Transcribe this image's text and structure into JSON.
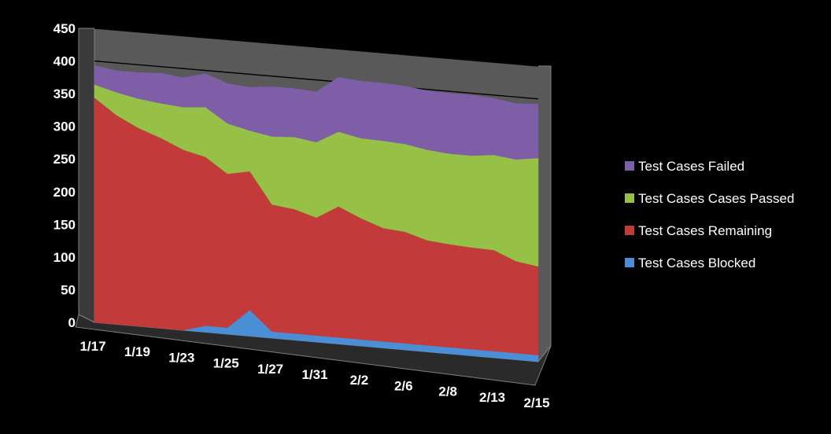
{
  "chart_data": {
    "type": "area",
    "stacked": true,
    "three_d": true,
    "title": "",
    "xlabel": "",
    "ylabel": "",
    "ylim": [
      0,
      450
    ],
    "y_ticks": [
      0,
      50,
      100,
      150,
      200,
      250,
      300,
      350,
      400,
      450
    ],
    "grid": true,
    "legend_position": "right",
    "x": [
      "1/17",
      "1/18",
      "1/19",
      "1/20",
      "1/23",
      "1/24",
      "1/25",
      "1/26",
      "1/27",
      "1/30",
      "1/31",
      "2/1",
      "2/2",
      "2/3",
      "2/6",
      "2/7",
      "2/8",
      "2/9",
      "2/13",
      "2/14",
      "2/15"
    ],
    "x_tick_labels": [
      "1/17",
      "1/19",
      "1/23",
      "1/25",
      "1/27",
      "1/31",
      "2/2",
      "2/6",
      "2/8",
      "2/13",
      "2/15"
    ],
    "series": [
      {
        "name": "Test Cases Blocked",
        "color": "#4a8fd6",
        "values": [
          0,
          0,
          0,
          0,
          0,
          10,
          10,
          40,
          10,
          10,
          10,
          10,
          10,
          10,
          10,
          10,
          10,
          10,
          10,
          10,
          10
        ]
      },
      {
        "name": "Test Cases Remaining",
        "color": "#c23a3a",
        "values": [
          344,
          320,
          303,
          291,
          276,
          258,
          235,
          212,
          194,
          190,
          180,
          200,
          185,
          173,
          170,
          160,
          157,
          155,
          154,
          140,
          135
        ]
      },
      {
        "name": "Test Cases Cases Passed",
        "color": "#96c046",
        "values": [
          20,
          35,
          45,
          53,
          65,
          76,
          77,
          62,
          104,
          110,
          115,
          114,
          122,
          133,
          134,
          138,
          138,
          140,
          145,
          155,
          165
        ]
      },
      {
        "name": "Test Cases Failed",
        "color": "#7d5ea7",
        "values": [
          29,
          33,
          40,
          46,
          45,
          51,
          61,
          66,
          76,
          74,
          77,
          83,
          87,
          88,
          88,
          90,
          92,
          92,
          86,
          85,
          82
        ]
      }
    ]
  }
}
